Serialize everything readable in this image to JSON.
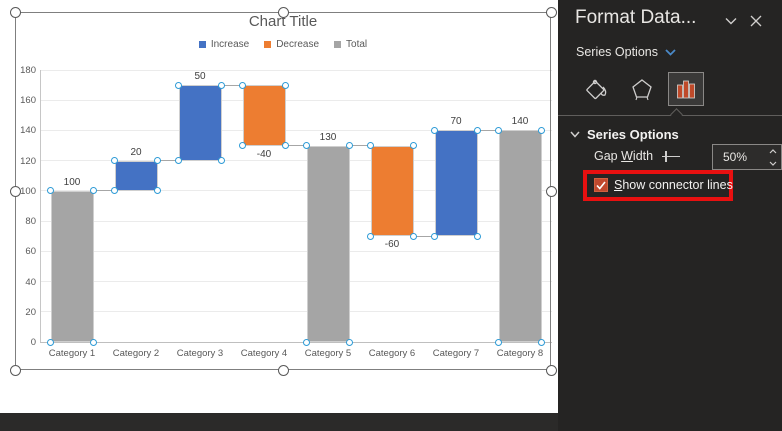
{
  "chart_data": {
    "type": "bar",
    "subtype": "waterfall",
    "title": "Chart Title",
    "categories": [
      "Category 1",
      "Category 2",
      "Category 3",
      "Category 4",
      "Category 5",
      "Category 6",
      "Category 7",
      "Category 8"
    ],
    "series": [
      {
        "name": "Increase",
        "color": "#4472C4",
        "values": [
          null,
          20,
          50,
          null,
          null,
          null,
          70,
          null
        ]
      },
      {
        "name": "Decrease",
        "color": "#ED7D31",
        "values": [
          null,
          null,
          null,
          -40,
          null,
          -60,
          null,
          null
        ]
      },
      {
        "name": "Total",
        "color": "#A5A5A5",
        "values": [
          100,
          null,
          null,
          null,
          130,
          null,
          null,
          140
        ]
      }
    ],
    "points": [
      {
        "category": "Category 1",
        "series": "Total",
        "value": 100,
        "start": 0,
        "end": 100,
        "label": "100"
      },
      {
        "category": "Category 2",
        "series": "Increase",
        "value": 20,
        "start": 100,
        "end": 120,
        "label": "20"
      },
      {
        "category": "Category 3",
        "series": "Increase",
        "value": 50,
        "start": 120,
        "end": 170,
        "label": "50"
      },
      {
        "category": "Category 4",
        "series": "Decrease",
        "value": -40,
        "start": 170,
        "end": 130,
        "label": "-40"
      },
      {
        "category": "Category 5",
        "series": "Total",
        "value": 130,
        "start": 0,
        "end": 130,
        "label": "130"
      },
      {
        "category": "Category 6",
        "series": "Decrease",
        "value": -60,
        "start": 130,
        "end": 70,
        "label": "-60"
      },
      {
        "category": "Category 7",
        "series": "Increase",
        "value": 70,
        "start": 70,
        "end": 140,
        "label": "70"
      },
      {
        "category": "Category 8",
        "series": "Total",
        "value": 140,
        "start": 0,
        "end": 140,
        "label": "140"
      }
    ],
    "ylim": [
      0,
      180
    ],
    "y_ticks": [
      0,
      20,
      40,
      60,
      80,
      100,
      120,
      140,
      160,
      180
    ],
    "grid": true,
    "legend_position": "top",
    "connectors_shown": true
  },
  "panel": {
    "title": "Format Data...",
    "dropdown_label": "Series Options",
    "tabs": [
      {
        "icon": "paint-bucket-icon",
        "selected": false
      },
      {
        "icon": "pentagon-effects-icon",
        "selected": false
      },
      {
        "icon": "series-bars-icon",
        "selected": true
      }
    ],
    "section_header": "Series Options",
    "gap_width": {
      "label_pre": "Gap ",
      "label_key": "W",
      "label_post": "idth",
      "value": "50%"
    },
    "checkbox": {
      "label_key": "S",
      "label_post": "how connector lines",
      "checked": true
    }
  },
  "colors": {
    "increase": "#4472C4",
    "decrease": "#ED7D31",
    "total": "#A5A5A5",
    "annotation_red": "#e81010",
    "checkbox_fill": "#c0492e",
    "point_handle_blue": "#2e9bd6",
    "panel_bg": "#252423",
    "panel_accent_blue": "#4a89c8"
  }
}
